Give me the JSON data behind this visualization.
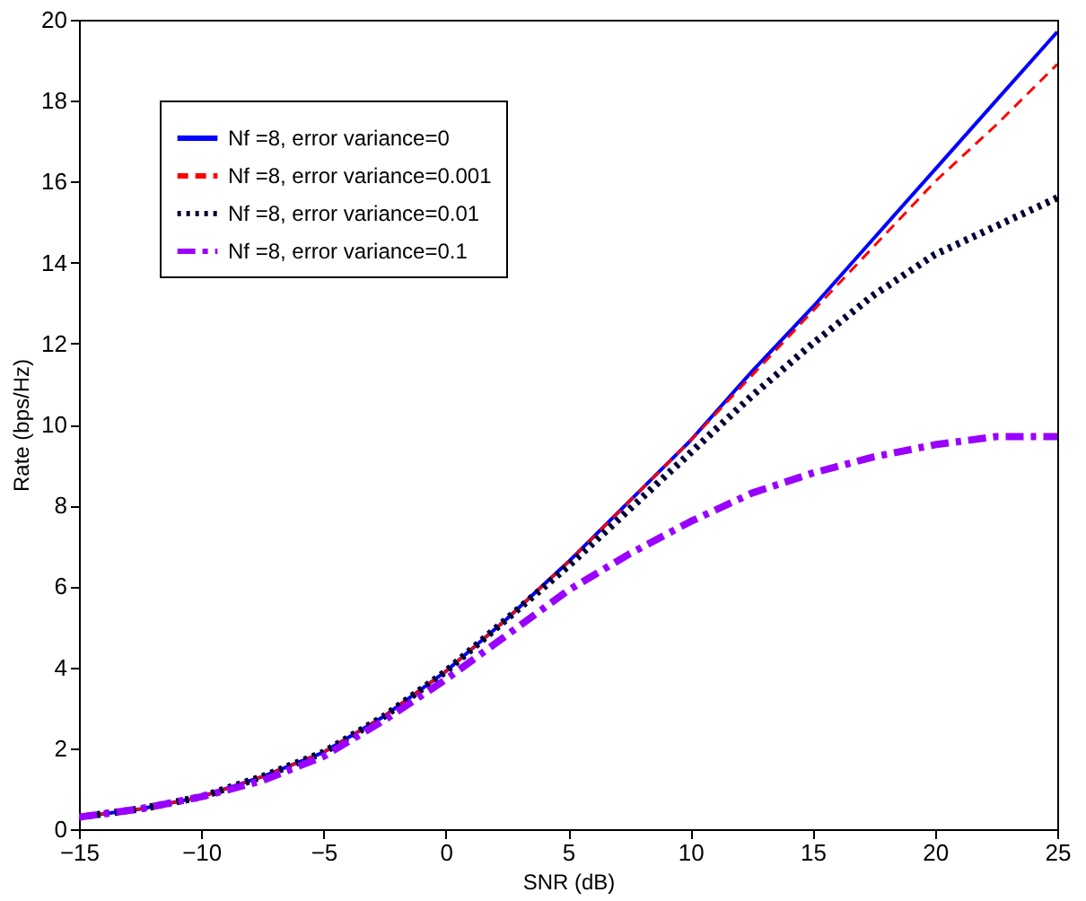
{
  "chart_data": {
    "type": "line",
    "xlabel": "SNR (dB)",
    "ylabel": "Rate (bps/Hz)",
    "xlim": [
      -15,
      25
    ],
    "xticks": [
      -15,
      -10,
      -5,
      0,
      5,
      10,
      15,
      20,
      25
    ],
    "ylim": [
      0,
      20
    ],
    "yticks": [
      0,
      2,
      4,
      6,
      8,
      10,
      12,
      14,
      16,
      18,
      20
    ],
    "grid": false,
    "legend": "top left",
    "x": [
      -15,
      -12.5,
      -10,
      -7.5,
      -5,
      -2.5,
      0,
      2.5,
      5,
      7.5,
      10,
      12.5,
      15,
      17.5,
      20,
      22.5,
      25
    ],
    "series": [
      {
        "name": "Nf =8, error variance=0",
        "color": "#0000ff",
        "line_style": "solid",
        "values": [
          0.3,
          0.5,
          0.8,
          1.3,
          1.9,
          2.8,
          3.9,
          5.2,
          6.6,
          8.1,
          9.6,
          11.3,
          12.9,
          14.6,
          16.3,
          18.0,
          19.7
        ]
      },
      {
        "name": "Nf =8, error variance=0.001",
        "color": "#ff0000",
        "line_style": "dashed",
        "values": [
          0.3,
          0.5,
          0.8,
          1.3,
          1.9,
          2.8,
          3.9,
          5.2,
          6.6,
          8.1,
          9.6,
          11.2,
          12.8,
          14.4,
          16.0,
          17.4,
          18.9
        ]
      },
      {
        "name": "Nf =8, error variance=0.01",
        "color": "#000033",
        "line_style": "dotted",
        "values": [
          0.3,
          0.5,
          0.8,
          1.3,
          1.9,
          2.8,
          3.9,
          5.2,
          6.5,
          7.9,
          9.3,
          10.7,
          12.0,
          13.2,
          14.2,
          14.9,
          15.6
        ]
      },
      {
        "name": "Nf =8, error variance=0.1",
        "color": "#9900ff",
        "line_style": "dashdot",
        "values": [
          0.3,
          0.5,
          0.8,
          1.2,
          1.8,
          2.7,
          3.7,
          4.8,
          5.9,
          6.8,
          7.6,
          8.3,
          8.8,
          9.2,
          9.5,
          9.7,
          9.7
        ]
      }
    ]
  }
}
